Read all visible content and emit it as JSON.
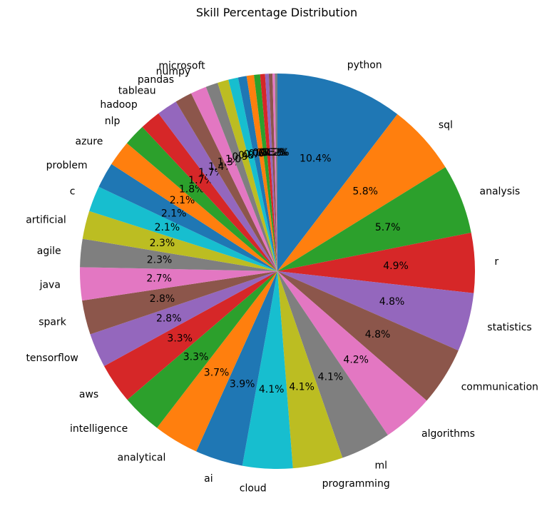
{
  "chart_data": {
    "type": "pie",
    "title": "Skill Percentage Distribution",
    "start_angle_deg": 90,
    "direction": "clockwise",
    "colors": [
      "#1f77b4",
      "#ff7f0e",
      "#2ca02c",
      "#d62728",
      "#9467bd",
      "#8c564b",
      "#e377c2",
      "#7f7f7f",
      "#bcbd22",
      "#17becf"
    ],
    "slices": [
      {
        "label": "python",
        "value": 10.4
      },
      {
        "label": "sql",
        "value": 5.8
      },
      {
        "label": "analysis",
        "value": 5.7
      },
      {
        "label": "r",
        "value": 4.9
      },
      {
        "label": "statistics",
        "value": 4.8
      },
      {
        "label": "communication",
        "value": 4.8
      },
      {
        "label": "algorithms",
        "value": 4.2
      },
      {
        "label": "ml",
        "value": 4.1
      },
      {
        "label": "programming",
        "value": 4.1
      },
      {
        "label": "cloud",
        "value": 4.1
      },
      {
        "label": "ai",
        "value": 3.9
      },
      {
        "label": "analytical",
        "value": 3.7
      },
      {
        "label": "intelligence",
        "value": 3.3
      },
      {
        "label": "aws",
        "value": 3.3
      },
      {
        "label": "tensorflow",
        "value": 2.8
      },
      {
        "label": "spark",
        "value": 2.8
      },
      {
        "label": "java",
        "value": 2.7
      },
      {
        "label": "agile",
        "value": 2.3
      },
      {
        "label": "artificial",
        "value": 2.3
      },
      {
        "label": "c",
        "value": 2.1
      },
      {
        "label": "problem",
        "value": 2.1
      },
      {
        "label": "azure",
        "value": 2.1
      },
      {
        "label": "nlp",
        "value": 1.8
      },
      {
        "label": "hadoop",
        "value": 1.7
      },
      {
        "label": "tableau",
        "value": 1.7
      },
      {
        "label": "pandas",
        "value": 1.4
      },
      {
        "label": "numpy",
        "value": 1.3
      },
      {
        "label": "microsoft",
        "value": 1.0
      },
      {
        "label": "",
        "value": 0.9
      },
      {
        "label": "",
        "value": 0.8
      },
      {
        "label": "",
        "value": 0.7
      },
      {
        "label": "",
        "value": 0.6
      },
      {
        "label": "",
        "value": 0.5
      },
      {
        "label": "",
        "value": 0.4
      },
      {
        "label": "",
        "value": 0.3
      },
      {
        "label": "",
        "value": 0.3
      },
      {
        "label": "",
        "value": 0.2
      },
      {
        "label": "",
        "value": 0.2
      }
    ]
  }
}
